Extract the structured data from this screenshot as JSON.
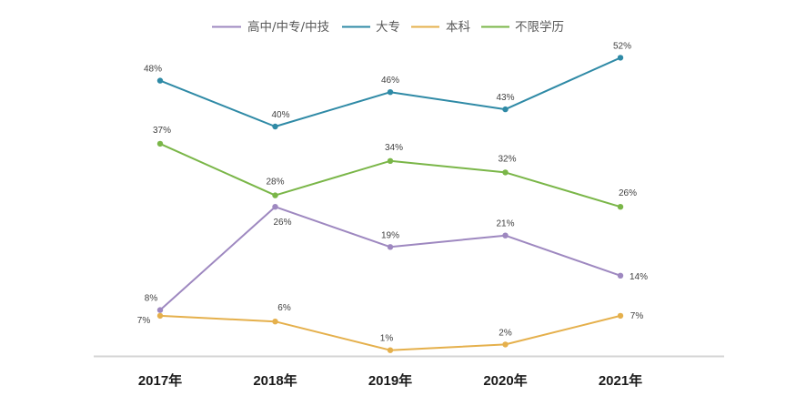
{
  "chart_data": {
    "type": "line",
    "categories": [
      "2017年",
      "2018年",
      "2019年",
      "2020年",
      "2021年"
    ],
    "series": [
      {
        "name": "高中/中专/中技",
        "color": "#9e88c0",
        "values": [
          8,
          26,
          19,
          21,
          14
        ],
        "labels": [
          "8%",
          "26%",
          "19%",
          "21%",
          "14%"
        ]
      },
      {
        "name": "大专",
        "color": "#2f8aa6",
        "values": [
          48,
          40,
          46,
          43,
          52
        ],
        "labels": [
          "48%",
          "40%",
          "46%",
          "43%",
          "52%"
        ]
      },
      {
        "name": "本科",
        "color": "#e5b04c",
        "values": [
          7,
          6,
          1,
          2,
          7
        ],
        "labels": [
          "7%",
          "6%",
          "1%",
          "2%",
          "7%"
        ]
      },
      {
        "name": "不限学历",
        "color": "#7ab648",
        "values": [
          37,
          28,
          34,
          32,
          26
        ],
        "labels": [
          "37%",
          "28%",
          "34%",
          "32%",
          "26%"
        ]
      }
    ],
    "ylim": [
      0,
      60
    ],
    "grid": false,
    "legend": "top"
  }
}
